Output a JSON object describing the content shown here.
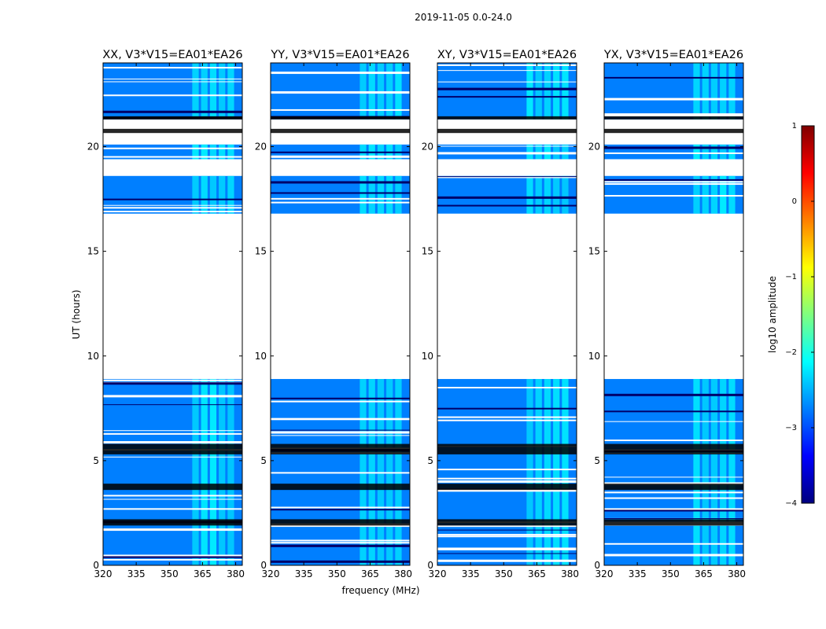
{
  "figure": {
    "suptitle": "2019-11-05 0.0-24.0",
    "xlabel": "frequency (MHz)",
    "ylabel": "UT (hours)"
  },
  "chart_data": {
    "type": "heatmap",
    "description": "Dynamic spectra (waterfall) of log10 amplitude vs frequency and UT time for four polarization products of one baseline",
    "xlim": [
      320,
      383
    ],
    "ylim": [
      0,
      24
    ],
    "xticks": [
      320,
      335,
      350,
      365,
      380
    ],
    "yticks": [
      0,
      5,
      10,
      15,
      20
    ],
    "panels": [
      {
        "title": "XX, V3*V15=EA01*EA26",
        "product": "XX"
      },
      {
        "title": "YY, V3*V15=EA01*EA26",
        "product": "YY"
      },
      {
        "title": "XY, V3*V15=EA01*EA26",
        "product": "XY"
      },
      {
        "title": "YX, V3*V15=EA01*EA26",
        "product": "YX"
      }
    ],
    "data_segments_hours": [
      [
        0,
        8.9
      ],
      [
        16.8,
        18.6
      ],
      [
        19.4,
        20.1
      ],
      [
        21.3,
        24
      ]
    ],
    "gap_hours": [
      [
        8.9,
        16.8
      ],
      [
        18.6,
        19.4
      ],
      [
        20.1,
        21.3
      ]
    ],
    "rfi_band_mhz": [
      360,
      380
    ],
    "background_log10_amplitude": -3.0,
    "rfi_log10_amplitude": -2.0,
    "colorbar": {
      "label": "log10 amplitude",
      "range": [
        -4,
        1
      ],
      "ticks": [
        1,
        0,
        -1,
        -2,
        -3,
        -4
      ],
      "tick_labels": [
        "1",
        "0",
        "−1",
        "−2",
        "−3",
        "−4"
      ],
      "colormap": [
        "#00007f",
        "#0000ff",
        "#007fff",
        "#00ffff",
        "#7fff7f",
        "#ffff00",
        "#ff7f00",
        "#ff0000",
        "#7f0000"
      ]
    }
  }
}
